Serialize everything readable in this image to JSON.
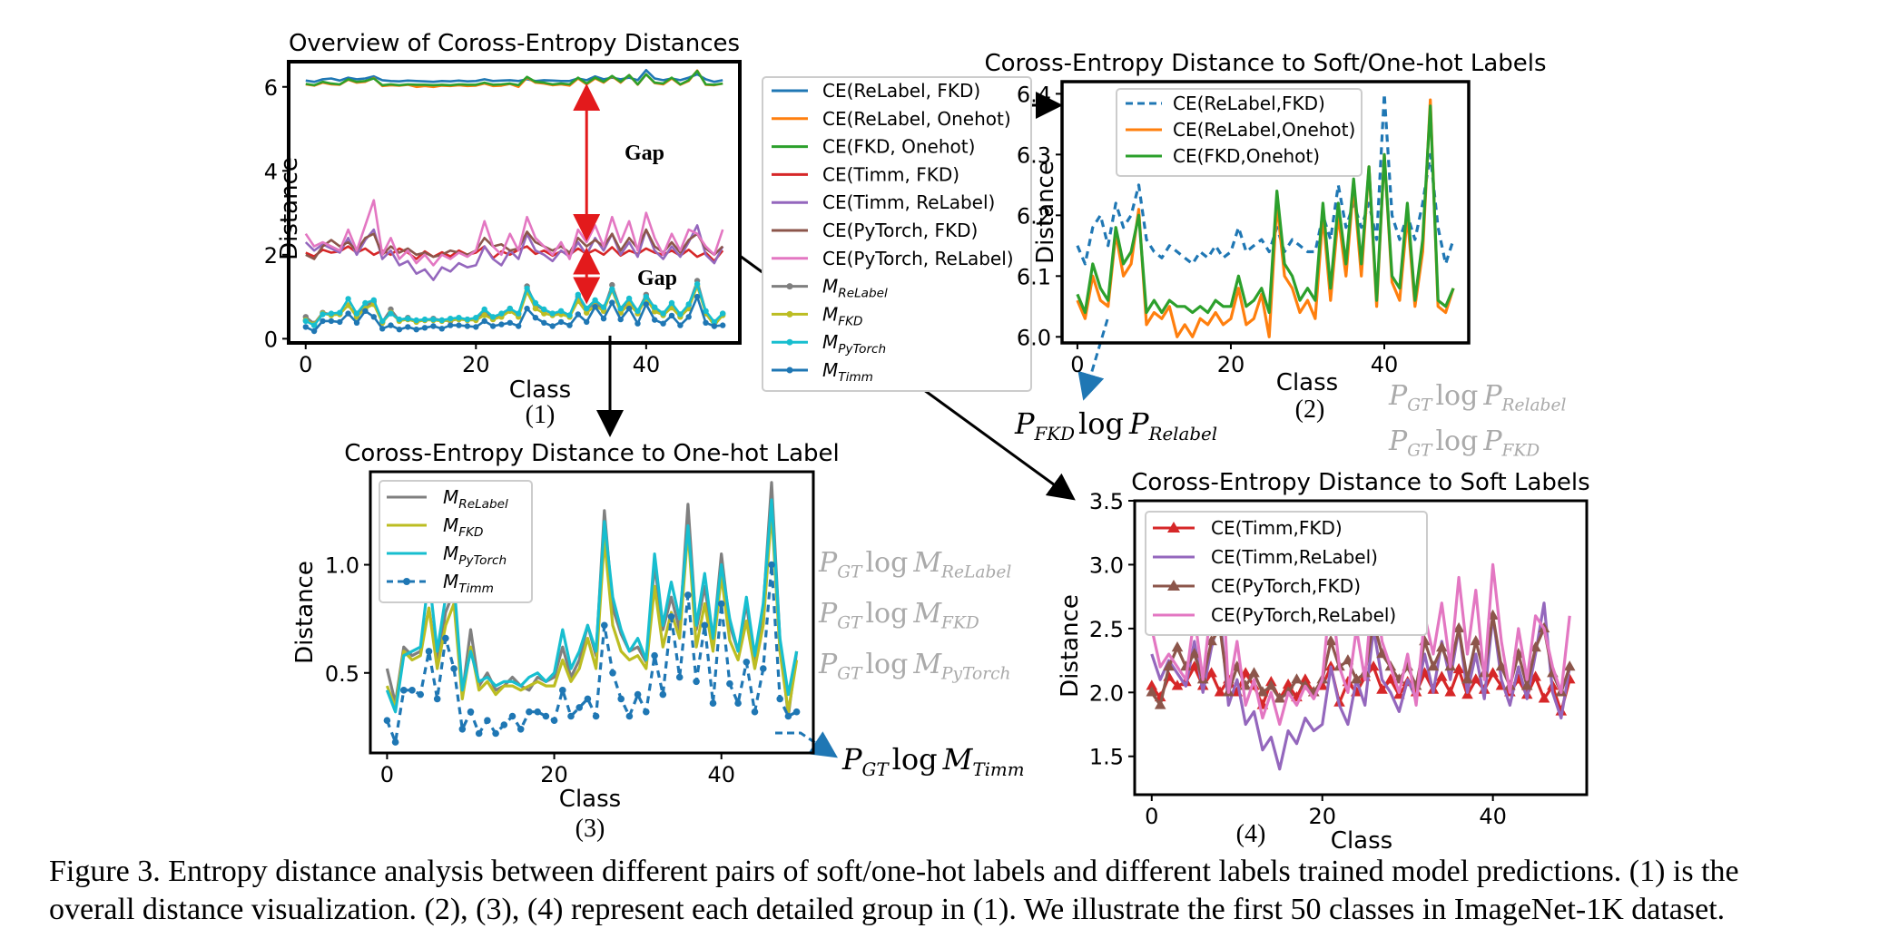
{
  "chart_data": [
    {
      "id": "p1",
      "type": "line",
      "title": "Overview of Coross-Entropy Distances",
      "xlabel": "Class",
      "ylabel": "Distance",
      "panel_label": "(1)",
      "xlim": [
        -2,
        51
      ],
      "ylim": [
        -0.1,
        6.6
      ],
      "xticks": [
        0,
        20,
        40
      ],
      "yticks": [
        0,
        2,
        4,
        6
      ],
      "annotations": [
        "Gap",
        "Gap"
      ],
      "series": [
        {
          "name": "CE(ReLabel, FKD)",
          "color": "#1f77b4",
          "style": "line",
          "values": [
            6.15,
            6.12,
            6.18,
            6.2,
            6.15,
            6.22,
            6.18,
            6.2,
            6.25,
            6.16,
            6.14,
            6.13,
            6.15,
            6.14,
            6.13,
            6.12,
            6.14,
            6.13,
            6.15,
            6.13,
            6.14,
            6.18,
            6.14,
            6.15,
            6.16,
            6.14,
            6.18,
            6.14,
            6.16,
            6.15,
            6.14,
            6.14,
            6.2,
            6.16,
            6.25,
            6.18,
            6.22,
            6.18,
            6.22,
            6.16,
            6.4,
            6.2,
            6.16,
            6.2,
            6.16,
            6.22,
            6.3,
            6.18,
            6.12,
            6.16
          ]
        },
        {
          "name": "CE(ReLabel, Onehot)",
          "color": "#ff7f0e",
          "style": "line",
          "values": [
            6.06,
            6.03,
            6.1,
            6.06,
            6.05,
            6.17,
            6.1,
            6.12,
            6.21,
            6.02,
            6.04,
            6.03,
            6.05,
            6.0,
            6.02,
            6.0,
            6.03,
            6.02,
            6.04,
            6.02,
            6.03,
            6.08,
            6.02,
            6.03,
            6.07,
            6.0,
            6.22,
            6.1,
            6.08,
            6.04,
            6.06,
            6.03,
            6.2,
            6.06,
            6.2,
            6.1,
            6.25,
            6.1,
            6.28,
            6.05,
            6.3,
            6.09,
            6.06,
            6.2,
            6.05,
            6.14,
            6.39,
            6.05,
            6.04,
            6.08
          ]
        },
        {
          "name": "CE(FKD, Onehot)",
          "color": "#2ca02c",
          "style": "line",
          "values": [
            6.07,
            6.04,
            6.12,
            6.08,
            6.06,
            6.18,
            6.12,
            6.14,
            6.2,
            6.04,
            6.06,
            6.04,
            6.06,
            6.05,
            6.05,
            6.04,
            6.05,
            6.04,
            6.06,
            6.05,
            6.05,
            6.1,
            6.05,
            6.06,
            6.08,
            6.04,
            6.24,
            6.12,
            6.1,
            6.06,
            6.08,
            6.06,
            6.22,
            6.08,
            6.22,
            6.12,
            6.26,
            6.12,
            6.28,
            6.06,
            6.3,
            6.1,
            6.08,
            6.22,
            6.06,
            6.16,
            6.38,
            6.06,
            6.05,
            6.08
          ]
        },
        {
          "name": "CE(Timm, FKD)",
          "color": "#d62728",
          "style": "line",
          "values": [
            2.05,
            1.96,
            2.12,
            2.05,
            2.08,
            2.2,
            2.05,
            2.15,
            2.0,
            2.1,
            2.0,
            2.15,
            2.05,
            1.9,
            2.08,
            1.95,
            2.06,
            1.96,
            2.1,
            2.0,
            2.05,
            2.2,
            1.92,
            2.08,
            2.0,
            2.12,
            2.2,
            2.02,
            2.1,
            1.98,
            2.08,
            2.0,
            2.15,
            2.02,
            2.12,
            2.0,
            2.18,
            1.98,
            2.1,
            2.02,
            2.15,
            2.05,
            2.0,
            2.1,
            1.98,
            2.12,
            1.95,
            2.05,
            1.85,
            2.1
          ]
        },
        {
          "name": "CE(Timm, ReLabel)",
          "color": "#9467bd",
          "style": "line",
          "values": [
            2.3,
            2.1,
            2.25,
            2.15,
            2.05,
            2.4,
            2.0,
            2.35,
            2.6,
            1.9,
            2.1,
            1.75,
            1.85,
            1.55,
            1.65,
            1.4,
            1.7,
            1.6,
            1.8,
            1.7,
            1.75,
            2.2,
            1.9,
            1.75,
            2.1,
            1.9,
            2.5,
            2.1,
            2.0,
            1.85,
            2.1,
            1.95,
            2.3,
            2.0,
            2.4,
            2.1,
            2.5,
            2.0,
            2.3,
            1.95,
            2.6,
            2.1,
            1.9,
            2.2,
            1.95,
            2.3,
            2.7,
            2.0,
            1.8,
            2.2
          ]
        },
        {
          "name": "CE(PyTorch, FKD)",
          "color": "#8c564b",
          "style": "line",
          "values": [
            2.0,
            1.9,
            2.2,
            2.35,
            2.2,
            2.3,
            2.1,
            2.4,
            2.5,
            2.0,
            2.2,
            2.05,
            2.15,
            2.0,
            2.05,
            1.95,
            2.0,
            2.1,
            2.05,
            2.0,
            2.1,
            2.4,
            2.2,
            2.25,
            2.1,
            2.15,
            2.55,
            2.3,
            2.2,
            2.1,
            2.2,
            2.05,
            2.4,
            2.2,
            2.35,
            2.2,
            2.5,
            2.1,
            2.4,
            2.15,
            2.6,
            2.2,
            2.05,
            2.3,
            2.05,
            2.35,
            2.5,
            2.15,
            2.0,
            2.2
          ]
        },
        {
          "name": "CE(PyTorch, ReLabel)",
          "color": "#e377c2",
          "style": "line",
          "values": [
            2.5,
            2.2,
            2.3,
            2.2,
            2.1,
            2.6,
            2.1,
            2.7,
            3.3,
            2.0,
            2.4,
            1.9,
            2.1,
            1.8,
            2.0,
            1.75,
            2.0,
            1.9,
            2.05,
            1.95,
            2.1,
            2.8,
            2.2,
            2.0,
            2.5,
            2.1,
            2.9,
            2.4,
            2.2,
            2.0,
            2.3,
            1.9,
            2.6,
            2.3,
            2.7,
            2.2,
            2.9,
            2.3,
            2.8,
            2.1,
            3.0,
            2.4,
            2.0,
            2.5,
            2.1,
            2.6,
            2.5,
            2.2,
            2.0,
            2.6
          ]
        },
        {
          "name": "M_ReLabel",
          "color": "#7f7f7f",
          "style": "marker",
          "values": [
            0.52,
            0.36,
            0.62,
            0.58,
            0.6,
            0.8,
            0.55,
            0.78,
            0.88,
            0.4,
            0.7,
            0.44,
            0.5,
            0.42,
            0.44,
            0.48,
            0.44,
            0.42,
            0.48,
            0.46,
            0.48,
            0.62,
            0.48,
            0.56,
            0.72,
            0.58,
            1.25,
            0.8,
            0.68,
            0.6,
            0.62,
            0.55,
            1.0,
            0.7,
            0.85,
            0.7,
            1.28,
            0.7,
            0.9,
            0.65,
            1.05,
            0.72,
            0.6,
            0.82,
            0.55,
            0.8,
            1.38,
            0.65,
            0.3,
            0.6
          ]
        },
        {
          "name": "M_FKD",
          "color": "#bcbd22",
          "style": "marker",
          "values": [
            0.44,
            0.34,
            0.6,
            0.56,
            0.58,
            0.8,
            0.52,
            0.72,
            0.82,
            0.38,
            0.62,
            0.42,
            0.46,
            0.4,
            0.44,
            0.44,
            0.42,
            0.44,
            0.46,
            0.44,
            0.44,
            0.56,
            0.46,
            0.52,
            0.66,
            0.52,
            1.12,
            0.72,
            0.6,
            0.56,
            0.58,
            0.52,
            0.9,
            0.62,
            0.78,
            0.66,
            1.16,
            0.62,
            0.82,
            0.6,
            0.95,
            0.65,
            0.56,
            0.74,
            0.52,
            0.72,
            1.25,
            0.6,
            0.32,
            0.56
          ]
        },
        {
          "name": "M_PyTorch",
          "color": "#17becf",
          "style": "marker",
          "values": [
            0.42,
            0.32,
            0.58,
            0.6,
            0.62,
            0.95,
            0.6,
            0.85,
            0.92,
            0.42,
            0.6,
            0.46,
            0.48,
            0.44,
            0.46,
            0.46,
            0.44,
            0.48,
            0.5,
            0.46,
            0.5,
            0.7,
            0.52,
            0.6,
            0.72,
            0.6,
            1.2,
            0.85,
            0.7,
            0.6,
            0.66,
            0.56,
            1.05,
            0.72,
            0.92,
            0.75,
            1.18,
            0.72,
            0.96,
            0.66,
            1.0,
            0.75,
            0.6,
            0.85,
            0.58,
            0.82,
            1.3,
            0.66,
            0.4,
            0.6
          ]
        },
        {
          "name": "M_Timm",
          "color": "#1f77b4",
          "style": "marker",
          "values": [
            0.28,
            0.18,
            0.42,
            0.42,
            0.4,
            0.6,
            0.38,
            0.66,
            0.52,
            0.24,
            0.32,
            0.22,
            0.28,
            0.22,
            0.26,
            0.3,
            0.24,
            0.32,
            0.32,
            0.3,
            0.28,
            0.42,
            0.3,
            0.34,
            0.38,
            0.3,
            0.72,
            0.5,
            0.38,
            0.3,
            0.4,
            0.32,
            0.58,
            0.4,
            0.76,
            0.48,
            0.86,
            0.46,
            0.72,
            0.36,
            0.82,
            0.45,
            0.36,
            0.55,
            0.32,
            0.52,
            1.0,
            0.38,
            0.3,
            0.32
          ]
        }
      ],
      "legend": {
        "placement": "outside-right"
      }
    },
    {
      "id": "p2",
      "type": "line",
      "title": "Coross-Entropy Distance to Soft/One-hot Labels",
      "xlabel": "Class",
      "ylabel": "Distance",
      "panel_label": "(2)",
      "xlim": [
        -2,
        51
      ],
      "ylim": [
        5.99,
        6.42
      ],
      "xticks": [
        0,
        20,
        40
      ],
      "yticks": [
        6.0,
        6.1,
        6.2,
        6.3,
        6.4
      ],
      "ytick_labels": [
        "6.0",
        "6.1",
        "6.2",
        "6.3",
        "6.4"
      ],
      "series_refs": [
        "CE(ReLabel, FKD)",
        "CE(ReLabel, Onehot)",
        "CE(FKD, Onehot)"
      ],
      "legend_labels": [
        "CE(ReLabel,FKD)",
        "CE(ReLabel,Onehot)",
        "CE(FKD,Onehot)"
      ],
      "legend": {
        "placement": "top-left"
      }
    },
    {
      "id": "p3",
      "type": "line",
      "title": "Coross-Entropy Distance to One-hot Label",
      "xlabel": "Class",
      "ylabel": "Distance",
      "panel_label": "(3)",
      "xlim": [
        -2,
        51
      ],
      "ylim": [
        0.13,
        1.43
      ],
      "xticks": [
        0,
        20,
        40
      ],
      "yticks": [
        0.5,
        1.0
      ],
      "ytick_labels": [
        "0.5",
        "1.0"
      ],
      "series_refs": [
        "M_ReLabel",
        "M_FKD",
        "M_PyTorch",
        "M_Timm"
      ],
      "legend": {
        "placement": "top-left"
      }
    },
    {
      "id": "p4",
      "type": "line",
      "title": "Coross-Entropy Distance to Soft Labels",
      "xlabel": "Class",
      "ylabel": "Distance",
      "panel_label": "(4)",
      "xlim": [
        -2,
        51
      ],
      "ylim": [
        1.2,
        3.5
      ],
      "xticks": [
        0,
        20,
        40
      ],
      "yticks": [
        1.5,
        2.0,
        2.5,
        3.0,
        3.5
      ],
      "ytick_labels": [
        "1.5",
        "2.0",
        "2.5",
        "3.0",
        "3.5"
      ],
      "series_refs": [
        "CE(Timm, FKD)",
        "CE(Timm, ReLabel)",
        "CE(PyTorch, FKD)",
        "CE(PyTorch, ReLabel)"
      ],
      "legend_labels": [
        "CE(Timm,FKD)",
        "CE(Timm,ReLabel)",
        "CE(PyTorch,FKD)",
        "CE(PyTorch,ReLabel)"
      ],
      "legend": {
        "placement": "top-left"
      }
    }
  ],
  "side_labels": {
    "p2_right": [
      {
        "P": "P",
        "sub1": "GT",
        "mid": "log",
        "P2": "P",
        "sub2": "Relabel"
      },
      {
        "P": "P",
        "sub1": "GT",
        "mid": "log",
        "P2": "P",
        "sub2": "FKD"
      }
    ],
    "p2_below": {
      "P": "P",
      "sub1": "FKD",
      "mid": "log",
      "P2": "P",
      "sub2": "Relabel"
    },
    "p3_right": [
      {
        "P": "P",
        "sub1": "GT",
        "mid": "log",
        "P2": "M",
        "sub2": "ReLabel"
      },
      {
        "P": "P",
        "sub1": "GT",
        "mid": "log",
        "P2": "M",
        "sub2": "FKD"
      },
      {
        "P": "P",
        "sub1": "GT",
        "mid": "log",
        "P2": "M",
        "sub2": "PyTorch"
      }
    ],
    "p3_timm": {
      "P": "P",
      "sub1": "GT",
      "mid": "log",
      "P2": "M",
      "sub2": "Timm"
    }
  },
  "caption": {
    "line1": "Figure 3. Entropy distance analysis between different pairs of soft/one-hot labels and different labels trained model predictions. (1) is the",
    "line2": "overall distance visualization. (2), (3), (4) represent each detailed group in (1). We illustrate the first 50 classes in ImageNet-1K dataset."
  }
}
